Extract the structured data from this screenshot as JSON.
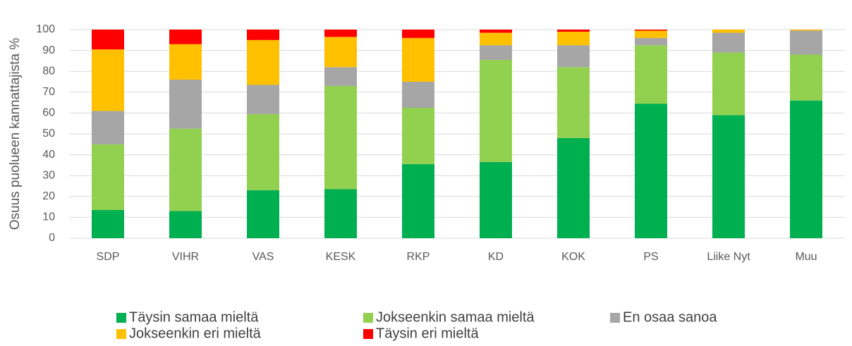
{
  "chart_data": {
    "type": "stacked_bar",
    "y_label": "Osuus puolueen kannattajista %",
    "categories": [
      "SDP",
      "VIHR",
      "VAS",
      "KESK",
      "RKP",
      "KD",
      "KOK",
      "PS",
      "Liike Nyt",
      "Muu"
    ],
    "series": [
      {
        "name": "Täysin samaa mieltä",
        "color": "#00b050",
        "values": [
          13.5,
          13,
          23,
          23.5,
          35.5,
          36.5,
          48,
          64.5,
          59,
          66
        ]
      },
      {
        "name": "Jokseenkin samaa mieltä",
        "color": "#92d050",
        "values": [
          31.5,
          39.5,
          36.5,
          49.5,
          27,
          49,
          34,
          28,
          30,
          22
        ]
      },
      {
        "name": "En osaa sanoa",
        "color": "#a6a6a6",
        "values": [
          16,
          23.5,
          14,
          9,
          12.5,
          7,
          10.5,
          3.5,
          9.5,
          11.5
        ]
      },
      {
        "name": "Jokseenkin eri mieltä",
        "color": "#ffc000",
        "values": [
          29.5,
          17,
          21.5,
          14.5,
          21,
          6,
          6.5,
          3.5,
          1.5,
          0.5
        ]
      },
      {
        "name": "Täysin eri mieltä",
        "color": "#ff0000",
        "values": [
          9.5,
          7,
          5,
          3.5,
          4,
          1.5,
          1,
          0.5,
          0,
          0
        ]
      }
    ],
    "ylim": [
      0,
      100
    ],
    "yticks": [
      0,
      10,
      20,
      30,
      40,
      50,
      60,
      70,
      80,
      90,
      100
    ],
    "grid": true
  }
}
